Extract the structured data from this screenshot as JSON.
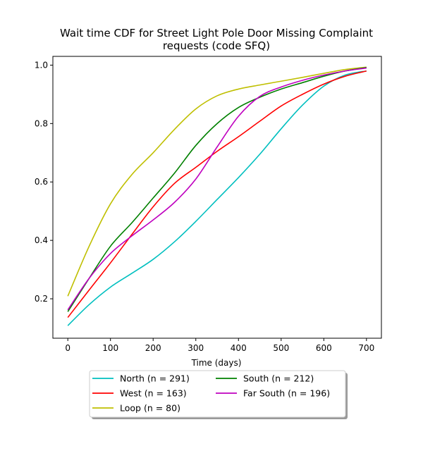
{
  "chart_data": {
    "type": "line",
    "title_line1": "Wait time CDF for Street Light Pole Door Missing Complaint",
    "title_line2": "requests (code SFQ)",
    "xlabel": "Time (days)",
    "ylabel": "",
    "xlim": [
      -35,
      735
    ],
    "ylim": [
      0.065,
      1.03
    ],
    "xticks": [
      0,
      100,
      200,
      300,
      400,
      500,
      600,
      700
    ],
    "yticks": [
      0.2,
      0.4,
      0.6,
      0.8,
      1.0
    ],
    "ytick_labels": [
      "0.2",
      "0.4",
      "0.6",
      "0.8",
      "1.0"
    ],
    "grid": false,
    "legend_position": "below",
    "x": [
      0,
      50,
      100,
      150,
      200,
      250,
      300,
      350,
      400,
      450,
      500,
      550,
      600,
      650,
      700
    ],
    "series": [
      {
        "name": "North (n = 291)",
        "color": "#00bfbf",
        "values": [
          0.108,
          0.18,
          0.24,
          0.287,
          0.335,
          0.395,
          0.465,
          0.54,
          0.615,
          0.695,
          0.782,
          0.863,
          0.928,
          0.966,
          0.98
        ]
      },
      {
        "name": "West (n = 163)",
        "color": "#ff0000",
        "values": [
          0.136,
          0.23,
          0.323,
          0.42,
          0.515,
          0.595,
          0.65,
          0.705,
          0.755,
          0.808,
          0.86,
          0.9,
          0.935,
          0.962,
          0.98
        ]
      },
      {
        "name": "Loop (n = 80)",
        "color": "#bfbf00",
        "values": [
          0.209,
          0.38,
          0.525,
          0.625,
          0.7,
          0.78,
          0.85,
          0.895,
          0.918,
          0.932,
          0.945,
          0.958,
          0.972,
          0.985,
          0.993
        ]
      },
      {
        "name": "South (n = 212)",
        "color": "#008000",
        "values": [
          0.156,
          0.27,
          0.38,
          0.46,
          0.545,
          0.63,
          0.725,
          0.8,
          0.855,
          0.89,
          0.918,
          0.94,
          0.962,
          0.98,
          0.992
        ]
      },
      {
        "name": "Far South (n = 196)",
        "color": "#bf00bf",
        "values": [
          0.162,
          0.27,
          0.355,
          0.415,
          0.47,
          0.53,
          0.61,
          0.72,
          0.825,
          0.893,
          0.925,
          0.948,
          0.966,
          0.98,
          0.99
        ]
      }
    ],
    "legend_order": [
      0,
      1,
      2,
      3,
      4
    ]
  }
}
